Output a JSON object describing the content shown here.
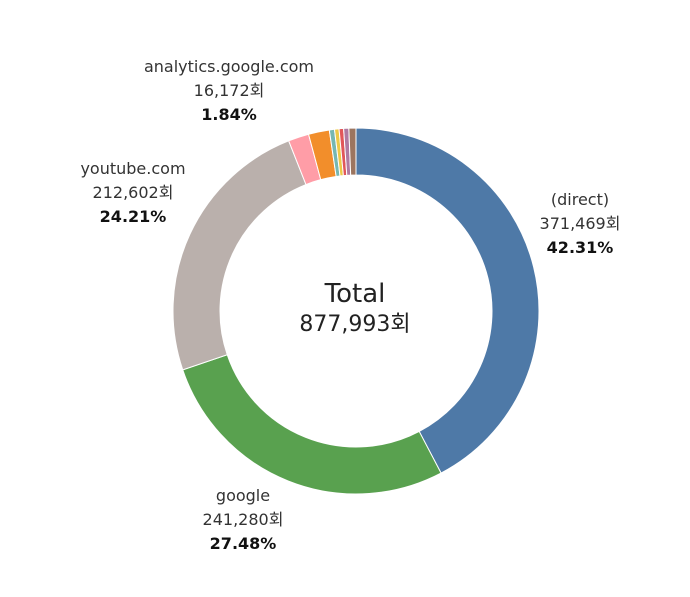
{
  "chart_data": {
    "type": "pie",
    "center": {
      "title": "Total",
      "value": "877,993회"
    },
    "slices": [
      {
        "name": "(direct)",
        "count": 371469,
        "count_label": "371,469회",
        "percent_label": "42.31%",
        "color": "#4e79a7"
      },
      {
        "name": "google",
        "count": 241280,
        "count_label": "241,280회",
        "percent_label": "27.48%",
        "color": "#59a14f"
      },
      {
        "name": "youtube.com",
        "count": 212602,
        "count_label": "212,602회",
        "percent_label": "24.21%",
        "color": "#bab0ac"
      },
      {
        "name": "",
        "count": 16000,
        "color": "#ff9da7"
      },
      {
        "name": "analytics.google.com",
        "count": 16172,
        "count_label": "16,172회",
        "percent_label": "1.84%",
        "color": "#f28e2b"
      },
      {
        "name": "",
        "count": 4000,
        "color": "#76b7b2"
      },
      {
        "name": "",
        "count": 3500,
        "color": "#edc948"
      },
      {
        "name": "",
        "count": 3500,
        "color": "#e15759"
      },
      {
        "name": "",
        "count": 4000,
        "color": "#b07aa1"
      },
      {
        "name": "",
        "count": 5470,
        "color": "#9c755f"
      }
    ]
  }
}
